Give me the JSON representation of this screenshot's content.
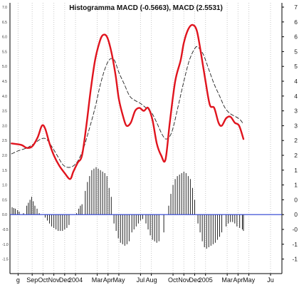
{
  "chart_data": {
    "type": "line",
    "title": "Histogramma MACD (-0.5663), MACD (2.5531)",
    "xlabel": "",
    "ylabel": "",
    "ylim": [
      -1.65,
      7.2
    ],
    "grid": {
      "horizontal": false,
      "vertical": true,
      "style": "dotted"
    },
    "y_ticks_left": [
      "7.0",
      "6.5",
      "6.0",
      "5.5",
      "5.0",
      "4.5",
      "4.0",
      "3.5",
      "3.0",
      "2.5",
      "2.0",
      "1.5",
      "1.0",
      "0.5",
      "0.0",
      "-0.5",
      "-1.0",
      "-1.5"
    ],
    "y_ticks_right": [
      "7",
      "6",
      "6",
      "5",
      "5",
      "4",
      "4",
      "3",
      "3",
      "2",
      "2",
      "1",
      "1",
      "0",
      "0",
      "-0",
      "-1",
      "-1"
    ],
    "x_tick_labels": [
      {
        "label": "g",
        "x": -0.3
      },
      {
        "label": "Sep",
        "x": 1
      },
      {
        "label": "Oct",
        "x": 2
      },
      {
        "label": "Nov",
        "x": 3
      },
      {
        "label": "Dec",
        "x": 4
      },
      {
        "label": "2004",
        "x": 5
      },
      {
        "label": "Mar",
        "x": 7
      },
      {
        "label": "Apr",
        "x": 8
      },
      {
        "label": "May",
        "x": 9
      },
      {
        "label": "Jul",
        "x": 11
      },
      {
        "label": "Aug",
        "x": 12
      },
      {
        "label": "Oct",
        "x": 14
      },
      {
        "label": "Nov",
        "x": 15
      },
      {
        "label": "Dec",
        "x": 16
      },
      {
        "label": "2005",
        "x": 17
      },
      {
        "label": "Mar",
        "x": 19
      },
      {
        "label": "Apr",
        "x": 20
      },
      {
        "label": "May",
        "x": 21
      },
      {
        "label": "Ju",
        "x": 23
      }
    ],
    "series": [
      {
        "key": "macd",
        "style": "solid",
        "color": "#e0141e",
        "points": [
          [
            -0.9,
            2.4
          ],
          [
            0,
            2.35
          ],
          [
            0.5,
            2.25
          ],
          [
            1,
            2.3
          ],
          [
            1.5,
            2.6
          ],
          [
            1.9,
            3.0
          ],
          [
            2.2,
            2.9
          ],
          [
            2.6,
            2.4
          ],
          [
            3,
            2.0
          ],
          [
            3.5,
            1.65
          ],
          [
            4,
            1.4
          ],
          [
            4.5,
            1.2
          ],
          [
            4.8,
            1.45
          ],
          [
            5.2,
            1.75
          ],
          [
            5.6,
            2.0
          ],
          [
            6.0,
            3.0
          ],
          [
            6.4,
            4.2
          ],
          [
            6.8,
            5.2
          ],
          [
            7.2,
            5.8
          ],
          [
            7.5,
            6.05
          ],
          [
            7.9,
            6.0
          ],
          [
            8.3,
            5.5
          ],
          [
            8.7,
            4.7
          ],
          [
            9.0,
            3.9
          ],
          [
            9.4,
            3.3
          ],
          [
            9.7,
            3.0
          ],
          [
            10.1,
            3.1
          ],
          [
            10.5,
            3.5
          ],
          [
            10.9,
            3.6
          ],
          [
            11.3,
            3.5
          ],
          [
            11.7,
            3.6
          ],
          [
            12.1,
            3.2
          ],
          [
            12.5,
            2.4
          ],
          [
            12.9,
            2.0
          ],
          [
            13.3,
            1.85
          ],
          [
            13.7,
            3.1
          ],
          [
            14.2,
            4.5
          ],
          [
            14.7,
            5.2
          ],
          [
            15.0,
            5.8
          ],
          [
            15.4,
            6.25
          ],
          [
            15.8,
            6.4
          ],
          [
            16.2,
            6.2
          ],
          [
            16.6,
            5.4
          ],
          [
            17.0,
            4.5
          ],
          [
            17.4,
            3.7
          ],
          [
            17.8,
            3.6
          ],
          [
            18.2,
            3.1
          ],
          [
            18.5,
            3.0
          ],
          [
            18.9,
            3.25
          ],
          [
            19.3,
            3.3
          ],
          [
            19.7,
            3.1
          ],
          [
            20.1,
            3.0
          ],
          [
            20.5,
            2.55
          ]
        ]
      },
      {
        "key": "signal",
        "style": "dashed",
        "color": "#222222",
        "points": [
          [
            -0.9,
            2.05
          ],
          [
            -0.3,
            2.15
          ],
          [
            0.5,
            2.25
          ],
          [
            1.2,
            2.4
          ],
          [
            1.8,
            2.55
          ],
          [
            2.3,
            2.55
          ],
          [
            2.8,
            2.3
          ],
          [
            3.3,
            2.0
          ],
          [
            3.8,
            1.7
          ],
          [
            4.2,
            1.6
          ],
          [
            4.7,
            1.62
          ],
          [
            5.2,
            1.8
          ],
          [
            5.7,
            2.2
          ],
          [
            6.2,
            2.8
          ],
          [
            6.8,
            3.6
          ],
          [
            7.3,
            4.4
          ],
          [
            7.8,
            5.0
          ],
          [
            8.2,
            5.25
          ],
          [
            8.6,
            5.2
          ],
          [
            9.0,
            4.8
          ],
          [
            9.5,
            4.4
          ],
          [
            10.0,
            4.0
          ],
          [
            10.5,
            3.85
          ],
          [
            11.0,
            3.75
          ],
          [
            11.5,
            3.6
          ],
          [
            12.0,
            3.45
          ],
          [
            12.5,
            3.1
          ],
          [
            13.0,
            2.7
          ],
          [
            13.4,
            2.55
          ],
          [
            13.9,
            2.8
          ],
          [
            14.5,
            3.7
          ],
          [
            15.0,
            4.5
          ],
          [
            15.5,
            5.2
          ],
          [
            16.0,
            5.6
          ],
          [
            16.3,
            5.65
          ],
          [
            16.8,
            5.4
          ],
          [
            17.3,
            4.9
          ],
          [
            17.8,
            4.4
          ],
          [
            18.3,
            4.0
          ],
          [
            18.8,
            3.6
          ],
          [
            19.3,
            3.4
          ],
          [
            19.8,
            3.3
          ],
          [
            20.2,
            3.2
          ],
          [
            20.5,
            3.05
          ]
        ]
      }
    ],
    "histogram": {
      "color": "#222222",
      "baseline_color": "#2a3fd0",
      "bars": [
        [
          -0.85,
          0.25
        ],
        [
          -0.7,
          0.22
        ],
        [
          -0.55,
          0.2
        ],
        [
          -0.35,
          0.15
        ],
        [
          -0.2,
          0.1
        ],
        [
          0.2,
          0.05
        ],
        [
          0.5,
          0.3
        ],
        [
          0.65,
          0.4
        ],
        [
          0.8,
          0.5
        ],
        [
          0.95,
          0.6
        ],
        [
          1.1,
          0.45
        ],
        [
          1.25,
          0.3
        ],
        [
          1.45,
          0.2
        ],
        [
          1.65,
          0.05
        ],
        [
          2.2,
          -0.1
        ],
        [
          2.4,
          -0.2
        ],
        [
          2.6,
          -0.3
        ],
        [
          2.8,
          -0.4
        ],
        [
          3.0,
          -0.45
        ],
        [
          3.2,
          -0.5
        ],
        [
          3.4,
          -0.55
        ],
        [
          3.6,
          -0.55
        ],
        [
          3.8,
          -0.55
        ],
        [
          4.0,
          -0.5
        ],
        [
          4.2,
          -0.45
        ],
        [
          4.4,
          -0.35
        ],
        [
          5.1,
          0.05
        ],
        [
          5.3,
          0.2
        ],
        [
          5.45,
          0.3
        ],
        [
          5.6,
          0.35
        ],
        [
          5.9,
          0.8
        ],
        [
          6.1,
          1.1
        ],
        [
          6.3,
          1.3
        ],
        [
          6.5,
          1.5
        ],
        [
          6.7,
          1.55
        ],
        [
          6.9,
          1.6
        ],
        [
          7.1,
          1.55
        ],
        [
          7.3,
          1.5
        ],
        [
          7.5,
          1.45
        ],
        [
          7.7,
          1.4
        ],
        [
          7.9,
          1.3
        ],
        [
          8.1,
          0.9
        ],
        [
          8.3,
          0.6
        ],
        [
          8.55,
          -0.3
        ],
        [
          8.75,
          -0.55
        ],
        [
          8.95,
          -0.8
        ],
        [
          9.15,
          -0.95
        ],
        [
          9.35,
          -1.0
        ],
        [
          9.55,
          -1.05
        ],
        [
          9.75,
          -1.0
        ],
        [
          9.95,
          -0.9
        ],
        [
          10.2,
          -0.6
        ],
        [
          10.4,
          -0.5
        ],
        [
          10.6,
          -0.4
        ],
        [
          10.8,
          -0.3
        ],
        [
          11.0,
          -0.2
        ],
        [
          11.2,
          -0.15
        ],
        [
          11.5,
          -0.3
        ],
        [
          11.7,
          -0.5
        ],
        [
          11.9,
          -0.7
        ],
        [
          12.1,
          -0.85
        ],
        [
          12.3,
          -0.9
        ],
        [
          12.5,
          -0.95
        ],
        [
          12.7,
          -0.9
        ],
        [
          13.15,
          -0.6
        ],
        [
          13.6,
          0.3
        ],
        [
          13.8,
          0.7
        ],
        [
          14.0,
          1.0
        ],
        [
          14.2,
          1.2
        ],
        [
          14.4,
          1.3
        ],
        [
          14.6,
          1.35
        ],
        [
          14.8,
          1.4
        ],
        [
          15.0,
          1.45
        ],
        [
          15.2,
          1.4
        ],
        [
          15.4,
          1.3
        ],
        [
          15.6,
          1.2
        ],
        [
          15.8,
          0.9
        ],
        [
          16.0,
          0.5
        ],
        [
          16.3,
          -0.3
        ],
        [
          16.5,
          -0.6
        ],
        [
          16.7,
          -0.9
        ],
        [
          16.9,
          -1.1
        ],
        [
          17.1,
          -1.15
        ],
        [
          17.3,
          -1.1
        ],
        [
          17.5,
          -1.05
        ],
        [
          17.7,
          -1.0
        ],
        [
          17.9,
          -0.95
        ],
        [
          18.1,
          -0.85
        ],
        [
          18.3,
          -0.75
        ],
        [
          18.5,
          -0.6
        ],
        [
          18.9,
          -0.4
        ],
        [
          19.1,
          -0.3
        ],
        [
          19.3,
          -0.25
        ],
        [
          19.5,
          -0.25
        ],
        [
          19.7,
          -0.3
        ],
        [
          19.9,
          -0.4
        ],
        [
          20.15,
          -0.45
        ],
        [
          20.4,
          -0.5
        ],
        [
          20.5,
          -0.55
        ]
      ]
    }
  }
}
